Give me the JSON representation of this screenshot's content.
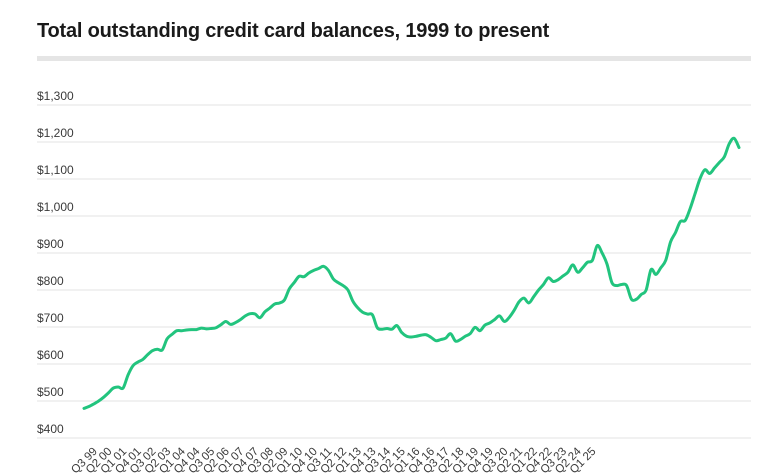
{
  "title": "Total outstanding credit card balances, 1999 to present",
  "colors": {
    "line": "#22c47e",
    "grid": "#e3e3e3",
    "rule": "#e5e5e5"
  },
  "chart_data": {
    "type": "line",
    "title": "Total outstanding credit card balances, 1999 to present",
    "xlabel": "",
    "ylabel": "",
    "ylim": [
      400,
      1300
    ],
    "y_ticks": [
      "$400",
      "$500",
      "$600",
      "$700",
      "$800",
      "$900",
      "$1,000",
      "$1,100",
      "$1,200",
      "$1,300"
    ],
    "x_ticks": [
      "Q3 99",
      "Q2 00",
      "Q1 01",
      "Q4 01",
      "Q3 02",
      "Q2 03",
      "Q1 04",
      "Q4 04",
      "Q3 05",
      "Q2 06",
      "Q1 07",
      "Q4 07",
      "Q3 08",
      "Q2 09",
      "Q1 10",
      "Q4 10",
      "Q3 11",
      "Q2 12",
      "Q1 13",
      "Q4 13",
      "Q3 14",
      "Q2 15",
      "Q1 16",
      "Q4 16",
      "Q3 17",
      "Q2 18",
      "Q1 19",
      "Q4 19",
      "Q3 20",
      "Q2 21",
      "Q1 22",
      "Q4 22",
      "Q3 23",
      "Q2 24",
      "Q1 25"
    ],
    "grid": true,
    "legend": "none",
    "x_start": "Q1 99",
    "series": [
      {
        "values": [
          480,
          485,
          492,
          500,
          510,
          522,
          535,
          538,
          535,
          570,
          595,
          605,
          612,
          625,
          636,
          640,
          638,
          668,
          680,
          690,
          690,
          692,
          693,
          693,
          697,
          695,
          696,
          698,
          706,
          715,
          707,
          712,
          720,
          730,
          736,
          735,
          725,
          741,
          751,
          762,
          765,
          773,
          803,
          820,
          837,
          836,
          846,
          853,
          858,
          864,
          853,
          830,
          820,
          812,
          800,
          770,
          752,
          740,
          735,
          733,
          698,
          694,
          696,
          694,
          704,
          685,
          675,
          673,
          675,
          678,
          679,
          672,
          663,
          666,
          670,
          682,
          662,
          666,
          675,
          682,
          699,
          690,
          705,
          711,
          720,
          730,
          715,
          726,
          745,
          768,
          778,
          765,
          782,
          800,
          815,
          833,
          823,
          828,
          838,
          848,
          868,
          848,
          860,
          875,
          880,
          920,
          900,
          870,
          820,
          812,
          815,
          812,
          775,
          775,
          788,
          800,
          855,
          842,
          860,
          880,
          930,
          955,
          985,
          988,
          1020,
          1060,
          1100,
          1125,
          1115,
          1130,
          1145,
          1160,
          1195,
          1210,
          1185
        ]
      }
    ]
  }
}
